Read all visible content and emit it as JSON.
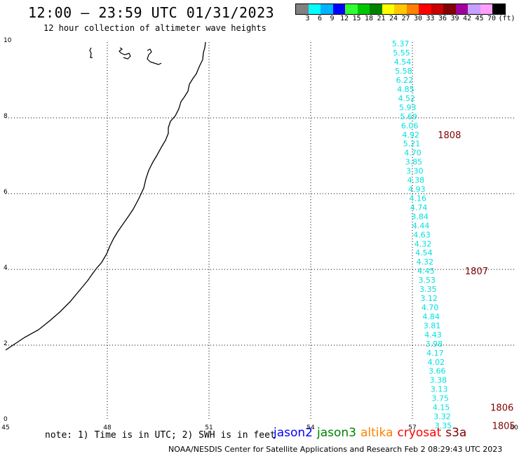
{
  "header": {
    "title": "12:00 – 23:59 UTC 01/31/2023",
    "subtitle": "12 hour collection of altimeter wave heights"
  },
  "legend": {
    "colors": [
      "#808080",
      "#00ffff",
      "#00b4ff",
      "#0000ff",
      "#32ff32",
      "#00c800",
      "#008200",
      "#ffff00",
      "#ffc800",
      "#ff8200",
      "#ff0000",
      "#c80000",
      "#820000",
      "#a000a0",
      "#c8a0ff",
      "#ffa0ff",
      "#000000"
    ],
    "labels": [
      "3",
      "6",
      "9",
      "12",
      "15",
      "18",
      "21",
      "24",
      "27",
      "30",
      "33",
      "36",
      "39",
      "42",
      "45",
      "70",
      "(ft)"
    ]
  },
  "map": {
    "x_range": [
      45,
      60
    ],
    "y_range": [
      0,
      10
    ],
    "x_ticks": [
      "45",
      "48",
      "51",
      "54",
      "57",
      "60"
    ],
    "y_ticks": [
      "0",
      "2",
      "4",
      "6",
      "8",
      "10"
    ],
    "wave_color": "#00e0e0",
    "wave_heights": [
      {
        "lon": 56.65,
        "lat": 9.96,
        "value": "5.37"
      },
      {
        "lon": 56.68,
        "lat": 9.72,
        "value": "5.55"
      },
      {
        "lon": 56.71,
        "lat": 9.48,
        "value": "4.54"
      },
      {
        "lon": 56.74,
        "lat": 9.24,
        "value": "5.58"
      },
      {
        "lon": 56.77,
        "lat": 9.0,
        "value": "6.22"
      },
      {
        "lon": 56.8,
        "lat": 8.76,
        "value": "4.85"
      },
      {
        "lon": 56.83,
        "lat": 8.52,
        "value": "4.52"
      },
      {
        "lon": 56.86,
        "lat": 8.28,
        "value": "5.93"
      },
      {
        "lon": 56.89,
        "lat": 8.04,
        "value": "5.69"
      },
      {
        "lon": 56.92,
        "lat": 7.8,
        "value": "6.06"
      },
      {
        "lon": 56.95,
        "lat": 7.56,
        "value": "4.92"
      },
      {
        "lon": 56.98,
        "lat": 7.32,
        "value": "5.21"
      },
      {
        "lon": 57.01,
        "lat": 7.08,
        "value": "4.70"
      },
      {
        "lon": 57.04,
        "lat": 6.84,
        "value": "3.85"
      },
      {
        "lon": 57.07,
        "lat": 6.6,
        "value": "3.30"
      },
      {
        "lon": 57.1,
        "lat": 6.36,
        "value": "4.38"
      },
      {
        "lon": 57.13,
        "lat": 6.12,
        "value": "4.93"
      },
      {
        "lon": 57.16,
        "lat": 5.88,
        "value": "4.16"
      },
      {
        "lon": 57.19,
        "lat": 5.64,
        "value": "4.74"
      },
      {
        "lon": 57.22,
        "lat": 5.4,
        "value": "3.84"
      },
      {
        "lon": 57.25,
        "lat": 5.16,
        "value": "4.44"
      },
      {
        "lon": 57.28,
        "lat": 4.92,
        "value": "4.63"
      },
      {
        "lon": 57.31,
        "lat": 4.68,
        "value": "4.32"
      },
      {
        "lon": 57.34,
        "lat": 4.44,
        "value": "4.54"
      },
      {
        "lon": 57.37,
        "lat": 4.2,
        "value": "4.32"
      },
      {
        "lon": 57.4,
        "lat": 3.96,
        "value": "4.45"
      },
      {
        "lon": 57.43,
        "lat": 3.72,
        "value": "3.53"
      },
      {
        "lon": 57.46,
        "lat": 3.48,
        "value": "3.35"
      },
      {
        "lon": 57.49,
        "lat": 3.24,
        "value": "3.12"
      },
      {
        "lon": 57.52,
        "lat": 3.0,
        "value": "4.70"
      },
      {
        "lon": 57.55,
        "lat": 2.76,
        "value": "4.84"
      },
      {
        "lon": 57.58,
        "lat": 2.52,
        "value": "3.81"
      },
      {
        "lon": 57.61,
        "lat": 2.28,
        "value": "4.43"
      },
      {
        "lon": 57.64,
        "lat": 2.04,
        "value": "3.98"
      },
      {
        "lon": 57.67,
        "lat": 1.8,
        "value": "4.17"
      },
      {
        "lon": 57.7,
        "lat": 1.56,
        "value": "4.02"
      },
      {
        "lon": 57.73,
        "lat": 1.32,
        "value": "3.66"
      },
      {
        "lon": 57.76,
        "lat": 1.08,
        "value": "3.38"
      },
      {
        "lon": 57.79,
        "lat": 0.84,
        "value": "3.13"
      },
      {
        "lon": 57.82,
        "lat": 0.6,
        "value": "3.75"
      },
      {
        "lon": 57.85,
        "lat": 0.36,
        "value": "4.15"
      },
      {
        "lon": 57.88,
        "lat": 0.12,
        "value": "3.32"
      },
      {
        "lon": 57.91,
        "lat": -0.12,
        "value": "3.35"
      }
    ],
    "time_labels": [
      {
        "lon": 57.75,
        "lat": 7.56,
        "value": "1808"
      },
      {
        "lon": 58.55,
        "lat": 3.96,
        "value": "1807"
      },
      {
        "lon": 59.3,
        "lat": 0.36,
        "value": "1806"
      },
      {
        "lon": 59.35,
        "lat": -0.12,
        "value": "1805"
      }
    ],
    "time_color": "#800000"
  },
  "footer": {
    "note": "note: 1) Time is in UTC; 2) SWH is in feet",
    "satellites": [
      {
        "name": "jason2",
        "color": "#0000ff"
      },
      {
        "name": "jason3",
        "color": "#008200"
      },
      {
        "name": "altika",
        "color": "#ff8200"
      },
      {
        "name": "cryosat",
        "color": "#ff0000"
      },
      {
        "name": "s3a",
        "color": "#820000"
      }
    ],
    "credit": "NOAA/NESDIS Center for Satellite Applications and Research   Feb  2 08:29:43 UTC 2023"
  }
}
